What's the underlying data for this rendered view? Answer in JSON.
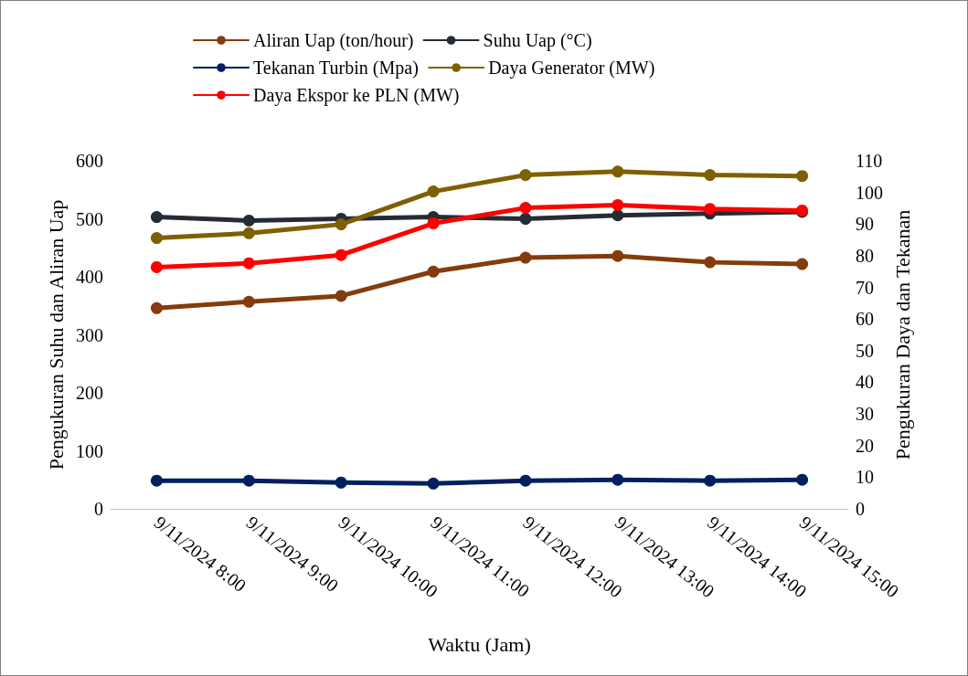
{
  "chart_data": {
    "type": "line",
    "xlabel": "Waktu (Jam)",
    "ylabel": "Pengukuran Suhu dan Aliran Uap",
    "y2label": "Pengukuran Daya dan Tekanan",
    "categories": [
      "9/11/2024 8:00",
      "9/11/2024 9:00",
      "9/11/2024 10:00",
      "9/11/2024 11:00",
      "9/11/2024 12:00",
      "9/11/2024 13:00",
      "9/11/2024 14:00",
      "9/11/2024 15:00"
    ],
    "series": [
      {
        "name": "Aliran Uap (ton/hour)",
        "color": "#843c0c",
        "values": [
          346,
          357,
          367,
          409,
          433,
          436,
          425,
          422
        ]
      },
      {
        "name": "Suhu Uap (°C)",
        "color": "#262c36",
        "values": [
          503,
          497,
          500,
          503,
          500,
          506,
          509,
          512
        ]
      },
      {
        "name": "Tekanan Turbin (Mpa)",
        "color": "#002060",
        "axis": "y2",
        "values": [
          8.9,
          8.9,
          8.3,
          8.0,
          8.9,
          9.2,
          8.9,
          9.2
        ]
      },
      {
        "name": "Daya Generator (MW)",
        "color": "#7f6000",
        "axis": "y2",
        "values": [
          85.6,
          87.1,
          89.9,
          100.3,
          105.5,
          106.6,
          105.5,
          105.2
        ]
      },
      {
        "name": "Daya Ekspor ke PLN (MW)",
        "color": "#ff0000",
        "axis": "y2",
        "values": [
          76.4,
          77.6,
          80.2,
          90.2,
          95.1,
          96.0,
          94.8,
          94.3
        ]
      }
    ],
    "ylim": [
      0,
      600
    ],
    "yticks": [
      0,
      100,
      200,
      300,
      400,
      500,
      600
    ],
    "y2lim": [
      0,
      110
    ],
    "y2ticks": [
      0,
      10,
      20,
      30,
      40,
      50,
      60,
      70,
      80,
      90,
      100,
      110
    ],
    "grid": false,
    "legend": "top",
    "marker": "circle",
    "line_style": "solid"
  }
}
